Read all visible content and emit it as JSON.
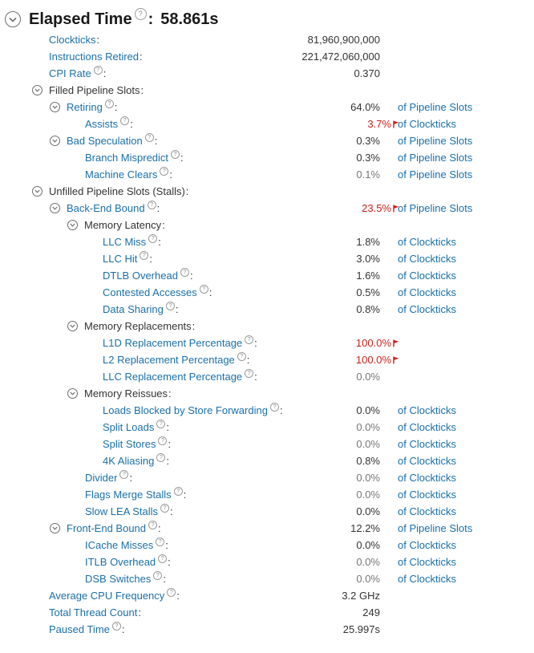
{
  "header": {
    "title": "Elapsed Time",
    "colon": ":",
    "value": "58.861s"
  },
  "rows": [
    {
      "label": "Clockticks",
      "level": 0,
      "link": true,
      "help": false,
      "value": "81,960,900,000",
      "unit": "",
      "style": "normal",
      "flag": false
    },
    {
      "label": "Instructions Retired",
      "level": 0,
      "link": true,
      "help": false,
      "value": "221,472,060,000",
      "unit": "",
      "style": "normal",
      "flag": false
    },
    {
      "label": "CPI Rate",
      "level": 0,
      "link": true,
      "help": true,
      "value": "0.370",
      "unit": "",
      "style": "normal",
      "flag": false
    },
    {
      "label": "Filled Pipeline Slots",
      "level": 0,
      "link": false,
      "toggle": true,
      "help": false,
      "value": "",
      "unit": "",
      "style": "normal",
      "flag": false
    },
    {
      "label": "Retiring",
      "level": 1,
      "link": true,
      "toggle": true,
      "help": true,
      "value": "64.0%",
      "unit": "of Pipeline Slots",
      "style": "normal",
      "flag": false
    },
    {
      "label": "Assists",
      "level": 2,
      "link": true,
      "help": true,
      "value": "3.7%",
      "unit": "of Clockticks",
      "style": "red",
      "flag": true
    },
    {
      "label": "Bad Speculation",
      "level": 1,
      "link": true,
      "toggle": true,
      "help": true,
      "value": "0.3%",
      "unit": "of Pipeline Slots",
      "style": "normal",
      "flag": false
    },
    {
      "label": "Branch Mispredict",
      "level": 2,
      "link": true,
      "help": true,
      "value": "0.3%",
      "unit": "of Pipeline Slots",
      "style": "normal",
      "flag": false
    },
    {
      "label": "Machine Clears",
      "level": 2,
      "link": true,
      "help": true,
      "value": "0.1%",
      "unit": "of Pipeline Slots",
      "style": "grey",
      "flag": false
    },
    {
      "label": "Unfilled Pipeline Slots (Stalls)",
      "level": 0,
      "link": false,
      "toggle": true,
      "help": false,
      "value": "",
      "unit": "",
      "style": "normal",
      "flag": false
    },
    {
      "label": "Back-End Bound",
      "level": 1,
      "link": true,
      "toggle": true,
      "help": true,
      "value": "23.5%",
      "unit": "of Pipeline Slots",
      "style": "red",
      "flag": true
    },
    {
      "label": "Memory Latency",
      "level": 2,
      "link": false,
      "toggle": true,
      "help": false,
      "value": "",
      "unit": "",
      "style": "normal",
      "flag": false
    },
    {
      "label": "LLC Miss",
      "level": 3,
      "link": true,
      "help": true,
      "value": "1.8%",
      "unit": "of Clockticks",
      "style": "normal",
      "flag": false
    },
    {
      "label": "LLC Hit",
      "level": 3,
      "link": true,
      "help": true,
      "value": "3.0%",
      "unit": "of Clockticks",
      "style": "normal",
      "flag": false
    },
    {
      "label": "DTLB Overhead",
      "level": 3,
      "link": true,
      "help": true,
      "value": "1.6%",
      "unit": "of Clockticks",
      "style": "normal",
      "flag": false
    },
    {
      "label": "Contested Accesses",
      "level": 3,
      "link": true,
      "help": true,
      "value": "0.5%",
      "unit": "of Clockticks",
      "style": "normal",
      "flag": false
    },
    {
      "label": "Data Sharing",
      "level": 3,
      "link": true,
      "help": true,
      "value": "0.8%",
      "unit": "of Clockticks",
      "style": "normal",
      "flag": false
    },
    {
      "label": "Memory Replacements",
      "level": 2,
      "link": false,
      "toggle": true,
      "help": false,
      "value": "",
      "unit": "",
      "style": "normal",
      "flag": false
    },
    {
      "label": "L1D Replacement Percentage",
      "level": 3,
      "link": true,
      "help": true,
      "value": "100.0%",
      "unit": "",
      "style": "red",
      "flag": true
    },
    {
      "label": "L2 Replacement Percentage",
      "level": 3,
      "link": true,
      "help": true,
      "value": "100.0%",
      "unit": "",
      "style": "red",
      "flag": true
    },
    {
      "label": "LLC Replacement Percentage",
      "level": 3,
      "link": true,
      "help": true,
      "value": "0.0%",
      "unit": "",
      "style": "grey",
      "flag": false
    },
    {
      "label": "Memory Reissues",
      "level": 2,
      "link": false,
      "toggle": true,
      "help": false,
      "value": "",
      "unit": "",
      "style": "normal",
      "flag": false
    },
    {
      "label": "Loads Blocked by Store Forwarding",
      "level": 3,
      "link": true,
      "help": true,
      "value": "0.0%",
      "unit": "of Clockticks",
      "style": "normal",
      "flag": false
    },
    {
      "label": "Split Loads",
      "level": 3,
      "link": true,
      "help": true,
      "value": "0.0%",
      "unit": "of Clockticks",
      "style": "grey",
      "flag": false
    },
    {
      "label": "Split Stores",
      "level": 3,
      "link": true,
      "help": true,
      "value": "0.0%",
      "unit": "of Clockticks",
      "style": "grey",
      "flag": false
    },
    {
      "label": "4K Aliasing",
      "level": 3,
      "link": true,
      "help": true,
      "value": "0.8%",
      "unit": "of Clockticks",
      "style": "normal",
      "flag": false
    },
    {
      "label": "Divider",
      "level": 2,
      "link": true,
      "help": true,
      "value": "0.0%",
      "unit": "of Clockticks",
      "style": "grey",
      "flag": false
    },
    {
      "label": "Flags Merge Stalls",
      "level": 2,
      "link": true,
      "help": true,
      "value": "0.0%",
      "unit": "of Clockticks",
      "style": "grey",
      "flag": false
    },
    {
      "label": "Slow LEA Stalls",
      "level": 2,
      "link": true,
      "help": true,
      "value": "0.0%",
      "unit": "of Clockticks",
      "style": "normal",
      "flag": false
    },
    {
      "label": "Front-End Bound",
      "level": 1,
      "link": true,
      "toggle": true,
      "help": true,
      "value": "12.2%",
      "unit": "of Pipeline Slots",
      "style": "normal",
      "flag": false
    },
    {
      "label": "ICache Misses",
      "level": 2,
      "link": true,
      "help": true,
      "value": "0.0%",
      "unit": "of Clockticks",
      "style": "normal",
      "flag": false
    },
    {
      "label": "ITLB Overhead",
      "level": 2,
      "link": true,
      "help": true,
      "value": "0.0%",
      "unit": "of Clockticks",
      "style": "grey",
      "flag": false
    },
    {
      "label": "DSB Switches",
      "level": 2,
      "link": true,
      "help": true,
      "value": "0.0%",
      "unit": "of Clockticks",
      "style": "grey",
      "flag": false
    },
    {
      "label": "Average CPU Frequency",
      "level": 0,
      "link": true,
      "help": true,
      "value": "3.2 GHz",
      "unit": "",
      "style": "normal",
      "flag": false
    },
    {
      "label": "Total Thread Count",
      "level": 0,
      "link": true,
      "help": false,
      "value": "249",
      "unit": "",
      "style": "normal",
      "flag": false
    },
    {
      "label": "Paused Time",
      "level": 0,
      "link": true,
      "help": true,
      "value": "25.997s",
      "unit": "",
      "style": "normal",
      "flag": false
    }
  ],
  "colors": {
    "link": "#1b6fa8",
    "text": "#333333",
    "grey": "#777777",
    "warning": "#c8231c"
  },
  "icons": {
    "toggle": "chevron-down-circle-icon",
    "help": "help-icon",
    "flag": "warning-flag-icon"
  }
}
